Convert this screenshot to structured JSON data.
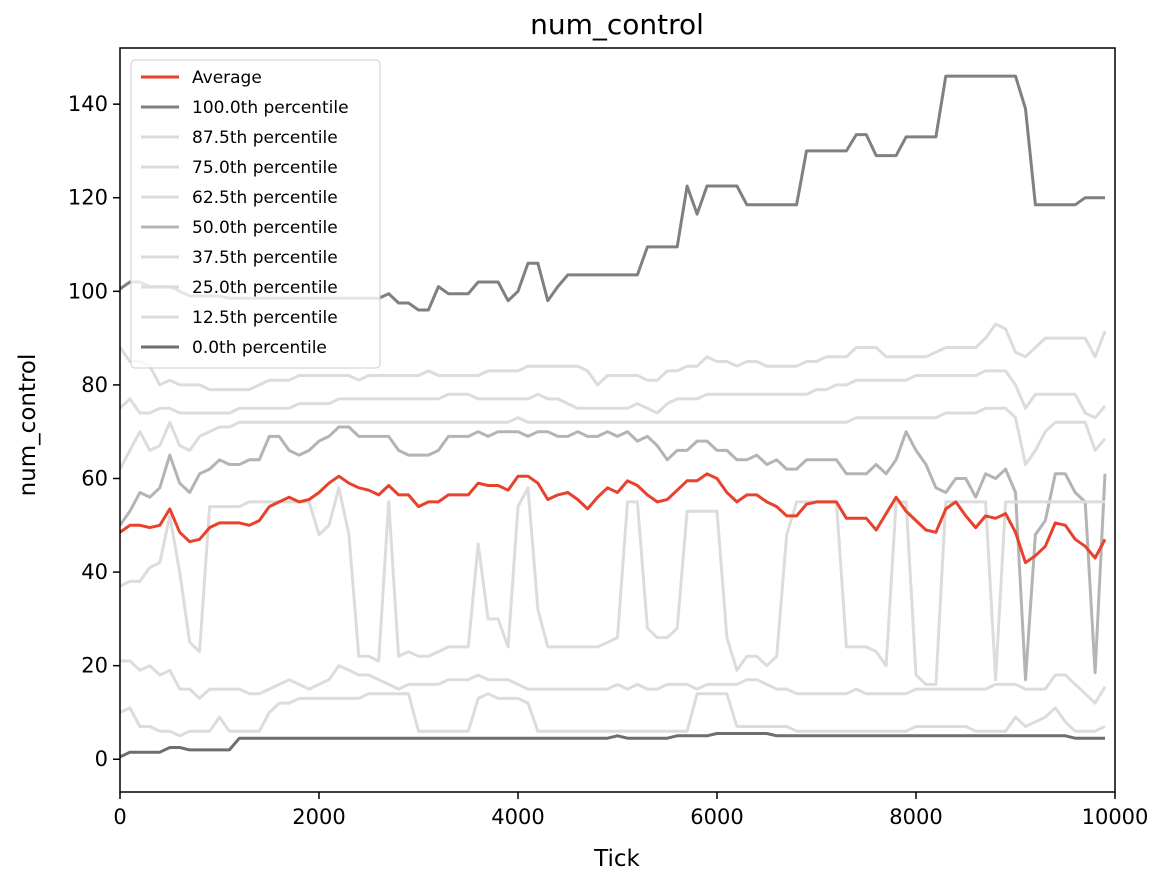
{
  "chart_data": {
    "type": "line",
    "title": "num_control",
    "xlabel": "Tick",
    "ylabel": "num_control",
    "xlim": [
      0,
      10000
    ],
    "ylim": [
      -7,
      152
    ],
    "xticks": [
      0,
      2000,
      4000,
      6000,
      8000,
      10000
    ],
    "yticks": [
      0,
      20,
      40,
      60,
      80,
      100,
      120,
      140
    ],
    "grid": false,
    "legend_position": "top-left",
    "x": [
      0,
      100,
      200,
      300,
      400,
      500,
      600,
      700,
      800,
      900,
      1000,
      1100,
      1200,
      1300,
      1400,
      1500,
      1600,
      1700,
      1800,
      1900,
      2000,
      2100,
      2200,
      2300,
      2400,
      2500,
      2600,
      2700,
      2800,
      2900,
      3000,
      3100,
      3200,
      3300,
      3400,
      3500,
      3600,
      3700,
      3800,
      3900,
      4000,
      4100,
      4200,
      4300,
      4400,
      4500,
      4600,
      4700,
      4800,
      4900,
      5000,
      5100,
      5200,
      5300,
      5400,
      5500,
      5600,
      5700,
      5800,
      5900,
      6000,
      6100,
      6200,
      6300,
      6400,
      6500,
      6600,
      6700,
      6800,
      6900,
      7000,
      7100,
      7200,
      7300,
      7400,
      7500,
      7600,
      7700,
      7800,
      7900,
      8000,
      8100,
      8200,
      8300,
      8400,
      8500,
      8600,
      8700,
      8800,
      8900,
      9000,
      9100,
      9200,
      9300,
      9400,
      9500,
      9600,
      9700,
      9800,
      9900
    ],
    "series": [
      {
        "name": "Average",
        "color": "#e8412c",
        "width": 3,
        "values": [
          48.5,
          50,
          50,
          49.5,
          50,
          53.5,
          48.5,
          46.5,
          47,
          49.5,
          50.5,
          50.5,
          50.5,
          50,
          51,
          54,
          55,
          56,
          55,
          55.5,
          57,
          59,
          60.5,
          59,
          58,
          57.5,
          56.5,
          58.5,
          56.5,
          56.5,
          54,
          55,
          55,
          56.5,
          56.5,
          56.5,
          59,
          58.5,
          58.5,
          57.5,
          60.5,
          60.5,
          59,
          55.5,
          56.5,
          57,
          55.5,
          53.5,
          56,
          58,
          57,
          59.5,
          58.5,
          56.5,
          55,
          55.5,
          57.5,
          59.5,
          59.5,
          61,
          60,
          57,
          55,
          56.5,
          56.5,
          55,
          54,
          52,
          52,
          54.5,
          55,
          55,
          55,
          51.5,
          51.5,
          51.5,
          49,
          52.5,
          56,
          53,
          51,
          49,
          48.5,
          53.5,
          55,
          52,
          49.5,
          52,
          51.5,
          52.5,
          48.5,
          42,
          43.5,
          45.5,
          50.5,
          50,
          47,
          45.5,
          43,
          47
        ]
      },
      {
        "name": "100.0th percentile",
        "color": "#808080",
        "width": 3,
        "values": [
          100.5,
          102,
          102,
          101,
          101,
          101,
          100,
          99,
          99,
          99,
          99,
          98.5,
          98.5,
          98.5,
          98.5,
          98.5,
          98.5,
          98.5,
          98.5,
          98.5,
          98.5,
          98.5,
          98.5,
          98.5,
          98.5,
          98.5,
          98.5,
          99.5,
          97.5,
          97.5,
          96,
          96,
          101,
          99.5,
          99.5,
          99.5,
          102,
          102,
          102,
          98,
          100,
          106,
          106,
          98,
          101,
          103.5,
          103.5,
          103.5,
          103.5,
          103.5,
          103.5,
          103.5,
          103.5,
          109.5,
          109.5,
          109.5,
          109.5,
          122.5,
          116.5,
          122.5,
          122.5,
          122.5,
          122.5,
          118.5,
          118.5,
          118.5,
          118.5,
          118.5,
          118.5,
          130,
          130,
          130,
          130,
          130,
          133.5,
          133.5,
          129,
          129,
          129,
          133,
          133,
          133,
          133,
          146,
          146,
          146,
          146,
          146,
          146,
          146,
          146,
          139,
          118.5,
          118.5,
          118.5,
          118.5,
          118.5,
          120,
          120,
          120
        ]
      },
      {
        "name": "87.5th percentile",
        "color": "#dcdcdc",
        "width": 3,
        "values": [
          88,
          85,
          85,
          84,
          80,
          81,
          80,
          80,
          80,
          79,
          79,
          79,
          79,
          79,
          80,
          81,
          81,
          81,
          82,
          82,
          82,
          82,
          82,
          82,
          81,
          82,
          82,
          82,
          82,
          82,
          82,
          83,
          82,
          82,
          82,
          82,
          82,
          83,
          83,
          83,
          83,
          84,
          84,
          84,
          84,
          84,
          84,
          83,
          80,
          82,
          82,
          82,
          82,
          81,
          81,
          83,
          83,
          84,
          84,
          86,
          85,
          85,
          84,
          85,
          85,
          84,
          84,
          84,
          84,
          85,
          85,
          86,
          86,
          86,
          88,
          88,
          88,
          86,
          86,
          86,
          86,
          86,
          87,
          88,
          88,
          88,
          88,
          90,
          93,
          92,
          87,
          86,
          88,
          90,
          90,
          90,
          90,
          90,
          86,
          91.5
        ]
      },
      {
        "name": "75.0th percentile",
        "color": "#dcdcdc",
        "width": 3,
        "values": [
          75,
          77,
          74,
          74,
          75,
          75,
          74,
          74,
          74,
          74,
          74,
          74,
          75,
          75,
          75,
          75,
          75,
          75,
          76,
          76,
          76,
          76,
          77,
          77,
          77,
          77,
          77,
          77,
          77,
          77,
          77,
          77,
          77,
          78,
          78,
          78,
          77,
          77,
          77,
          77,
          77,
          77,
          78,
          77,
          77,
          76,
          75,
          75,
          75,
          75,
          75,
          75,
          76,
          75,
          74,
          76,
          77,
          77,
          77,
          78,
          78,
          78,
          78,
          78,
          78,
          78,
          78,
          78,
          78,
          78,
          79,
          79,
          80,
          80,
          81,
          81,
          81,
          81,
          81,
          81,
          82,
          82,
          82,
          82,
          82,
          82,
          82,
          83,
          83,
          83,
          80,
          75,
          78,
          78,
          78,
          78,
          78,
          74,
          73,
          75.5
        ]
      },
      {
        "name": "62.5th percentile",
        "color": "#dcdcdc",
        "width": 3,
        "values": [
          62,
          66,
          70,
          66,
          67,
          72,
          67,
          66,
          69,
          70,
          71,
          71,
          72,
          72,
          72,
          72,
          72,
          72,
          72,
          72,
          72,
          72,
          72,
          72,
          72,
          72,
          72,
          72,
          72,
          72,
          72,
          72,
          72,
          72,
          72,
          72,
          72,
          72,
          72,
          72,
          73,
          72,
          72,
          72,
          72,
          72,
          72,
          72,
          72,
          72,
          72,
          72,
          72,
          72,
          72,
          72,
          72,
          72,
          72,
          72,
          72,
          72,
          72,
          72,
          72,
          72,
          72,
          72,
          72,
          72,
          72,
          72,
          72,
          72,
          73,
          73,
          73,
          73,
          73,
          73,
          73,
          73,
          73,
          74,
          74,
          74,
          74,
          75,
          75,
          75,
          73,
          63,
          66,
          70,
          72,
          72,
          72,
          72,
          66,
          68.5
        ]
      },
      {
        "name": "50.0th percentile",
        "color": "#b4b4b4",
        "width": 3,
        "values": [
          50,
          53,
          57,
          56,
          58,
          65,
          59,
          57,
          61,
          62,
          64,
          63,
          63,
          64,
          64,
          69,
          69,
          66,
          65,
          66,
          68,
          69,
          71,
          71,
          69,
          69,
          69,
          69,
          66,
          65,
          65,
          65,
          66,
          69,
          69,
          69,
          70,
          69,
          70,
          70,
          70,
          69,
          70,
          70,
          69,
          69,
          70,
          69,
          69,
          70,
          69,
          70,
          68,
          69,
          67,
          64,
          66,
          66,
          68,
          68,
          66,
          66,
          64,
          64,
          65,
          63,
          64,
          62,
          62,
          64,
          64,
          64,
          64,
          61,
          61,
          61,
          63,
          61,
          64,
          70,
          66,
          63,
          58,
          57,
          60,
          60,
          56,
          61,
          60,
          62,
          57,
          17,
          48,
          51,
          61,
          61,
          57,
          55,
          18.5,
          61
        ]
      },
      {
        "name": "37.5th percentile",
        "color": "#dcdcdc",
        "width": 3,
        "values": [
          37,
          38,
          38,
          41,
          42,
          52,
          40,
          25,
          23,
          54,
          54,
          54,
          54,
          55,
          55,
          55,
          55,
          55,
          55,
          55,
          48,
          50,
          58,
          48,
          22,
          22,
          21,
          55,
          22,
          23,
          22,
          22,
          23,
          24,
          24,
          24,
          46,
          30,
          30,
          24,
          54,
          58,
          32,
          24,
          24,
          24,
          24,
          24,
          24,
          25,
          26,
          55,
          55,
          28,
          26,
          26,
          28,
          53,
          53,
          53,
          53,
          26,
          19,
          22,
          22,
          20,
          22,
          48,
          55,
          55,
          55,
          55,
          55,
          24,
          24,
          24,
          23,
          20,
          55,
          55,
          18,
          16,
          16,
          55,
          55,
          55,
          55,
          55,
          17,
          55,
          55,
          55,
          55,
          55,
          55,
          55,
          55,
          55,
          55,
          55
        ]
      },
      {
        "name": "25.0th percentile",
        "color": "#dcdcdc",
        "width": 3,
        "values": [
          21,
          21,
          19,
          20,
          18,
          19,
          15,
          15,
          13,
          15,
          15,
          15,
          15,
          14,
          14,
          15,
          16,
          17,
          16,
          15,
          16,
          17,
          20,
          19,
          18,
          18,
          17,
          16,
          15,
          16,
          16,
          16,
          16,
          17,
          17,
          17,
          18,
          17,
          17,
          17,
          16,
          15,
          15,
          15,
          15,
          15,
          15,
          15,
          15,
          15,
          16,
          15,
          16,
          15,
          15,
          16,
          16,
          16,
          15,
          16,
          16,
          16,
          16,
          17,
          17,
          16,
          15,
          15,
          14,
          14,
          14,
          14,
          14,
          14,
          15,
          14,
          14,
          14,
          14,
          14,
          15,
          15,
          15,
          15,
          15,
          15,
          15,
          15,
          16,
          16,
          16,
          15,
          15,
          15,
          18,
          18,
          16,
          14,
          12,
          15.5
        ]
      },
      {
        "name": "12.5th percentile",
        "color": "#dcdcdc",
        "width": 3,
        "values": [
          10,
          11,
          7,
          7,
          6,
          6,
          5,
          6,
          6,
          6,
          9,
          6,
          6,
          6,
          6,
          10,
          12,
          12,
          13,
          13,
          13,
          13,
          13,
          13,
          13,
          14,
          14,
          14,
          14,
          14,
          6,
          6,
          6,
          6,
          6,
          6,
          13,
          14,
          13,
          13,
          13,
          12,
          6,
          6,
          6,
          6,
          6,
          6,
          6,
          6,
          6,
          6,
          6,
          6,
          6,
          6,
          6,
          6,
          14,
          14,
          14,
          14,
          7,
          7,
          7,
          7,
          7,
          7,
          6,
          6,
          6,
          6,
          6,
          6,
          6,
          6,
          6,
          6,
          6,
          6,
          7,
          7,
          7,
          7,
          7,
          7,
          6,
          6,
          6,
          6,
          9,
          7,
          8,
          9,
          11,
          8,
          6,
          6,
          6,
          7
        ]
      },
      {
        "name": "0.0th percentile",
        "color": "#6e6e6e",
        "width": 3,
        "values": [
          0.5,
          1.5,
          1.5,
          1.5,
          1.5,
          2.5,
          2.5,
          2,
          2,
          2,
          2,
          2,
          4.5,
          4.5,
          4.5,
          4.5,
          4.5,
          4.5,
          4.5,
          4.5,
          4.5,
          4.5,
          4.5,
          4.5,
          4.5,
          4.5,
          4.5,
          4.5,
          4.5,
          4.5,
          4.5,
          4.5,
          4.5,
          4.5,
          4.5,
          4.5,
          4.5,
          4.5,
          4.5,
          4.5,
          4.5,
          4.5,
          4.5,
          4.5,
          4.5,
          4.5,
          4.5,
          4.5,
          4.5,
          4.5,
          5,
          4.5,
          4.5,
          4.5,
          4.5,
          4.5,
          5,
          5,
          5,
          5,
          5.5,
          5.5,
          5.5,
          5.5,
          5.5,
          5.5,
          5,
          5,
          5,
          5,
          5,
          5,
          5,
          5,
          5,
          5,
          5,
          5,
          5,
          5,
          5,
          5,
          5,
          5,
          5,
          5,
          5,
          5,
          5,
          5,
          5,
          5,
          5,
          5,
          5,
          5,
          4.5,
          4.5,
          4.5,
          4.5
        ]
      }
    ]
  }
}
